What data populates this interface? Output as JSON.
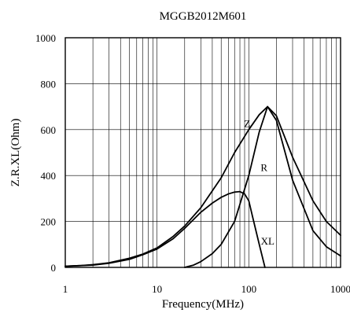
{
  "chart_data": {
    "type": "line",
    "title": "MGGB2012M601",
    "xlabel": "Frequency(MHz)",
    "ylabel": "Z.R.XL(Ohm)",
    "xscale": "log",
    "xlim": [
      1,
      1000
    ],
    "ylim": [
      0,
      1000
    ],
    "grid": true,
    "x_tick_labels": [
      "1",
      "10",
      "100",
      "1000"
    ],
    "y_tick_labels": [
      "0",
      "200",
      "400",
      "600",
      "800",
      "1000"
    ],
    "series": [
      {
        "name": "Z",
        "x": [
          1,
          1.5,
          2,
          3,
          5,
          7,
          10,
          15,
          20,
          30,
          50,
          70,
          100,
          130,
          160,
          200,
          300,
          500,
          700,
          1000
        ],
        "y": [
          5,
          8,
          12,
          20,
          40,
          58,
          85,
          135,
          180,
          260,
          390,
          500,
          600,
          665,
          700,
          660,
          480,
          290,
          200,
          140
        ]
      },
      {
        "name": "R",
        "x": [
          20,
          25,
          30,
          40,
          50,
          70,
          100,
          130,
          160,
          200,
          300,
          500,
          700,
          1000
        ],
        "y": [
          0,
          10,
          25,
          60,
          100,
          200,
          400,
          590,
          700,
          640,
          380,
          160,
          90,
          50
        ]
      },
      {
        "name": "XL",
        "x": [
          1,
          2,
          3,
          5,
          7,
          10,
          15,
          20,
          30,
          40,
          50,
          60,
          70,
          80,
          90,
          100,
          110,
          130,
          150
        ],
        "y": [
          5,
          10,
          18,
          35,
          55,
          80,
          125,
          170,
          240,
          280,
          305,
          320,
          328,
          330,
          320,
          290,
          220,
          100,
          0
        ]
      }
    ]
  }
}
